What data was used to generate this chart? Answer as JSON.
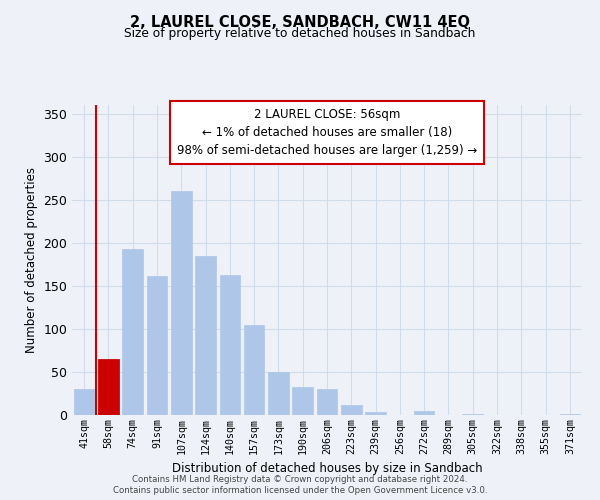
{
  "title": "2, LAUREL CLOSE, SANDBACH, CW11 4EQ",
  "subtitle": "Size of property relative to detached houses in Sandbach",
  "xlabel": "Distribution of detached houses by size in Sandbach",
  "ylabel": "Number of detached properties",
  "bar_labels": [
    "41sqm",
    "58sqm",
    "74sqm",
    "91sqm",
    "107sqm",
    "124sqm",
    "140sqm",
    "157sqm",
    "173sqm",
    "190sqm",
    "206sqm",
    "223sqm",
    "239sqm",
    "256sqm",
    "272sqm",
    "289sqm",
    "305sqm",
    "322sqm",
    "338sqm",
    "355sqm",
    "371sqm"
  ],
  "bar_values": [
    30,
    65,
    193,
    162,
    260,
    185,
    163,
    104,
    50,
    32,
    30,
    12,
    4,
    0,
    5,
    0,
    1,
    0,
    0,
    0,
    1
  ],
  "bar_color": "#aec6e8",
  "highlight_bar_index": 1,
  "highlight_color": "#cc0000",
  "annotation_line1": "2 LAUREL CLOSE: 56sqm",
  "annotation_line2": "← 1% of detached houses are smaller (18)",
  "annotation_line3": "98% of semi-detached houses are larger (1,259) →",
  "ylim": [
    0,
    360
  ],
  "yticks": [
    0,
    50,
    100,
    150,
    200,
    250,
    300,
    350
  ],
  "footer_line1": "Contains HM Land Registry data © Crown copyright and database right 2024.",
  "footer_line2": "Contains public sector information licensed under the Open Government Licence v3.0.",
  "bg_color": "#eef2f8",
  "grid_color": "#d8e4f0"
}
